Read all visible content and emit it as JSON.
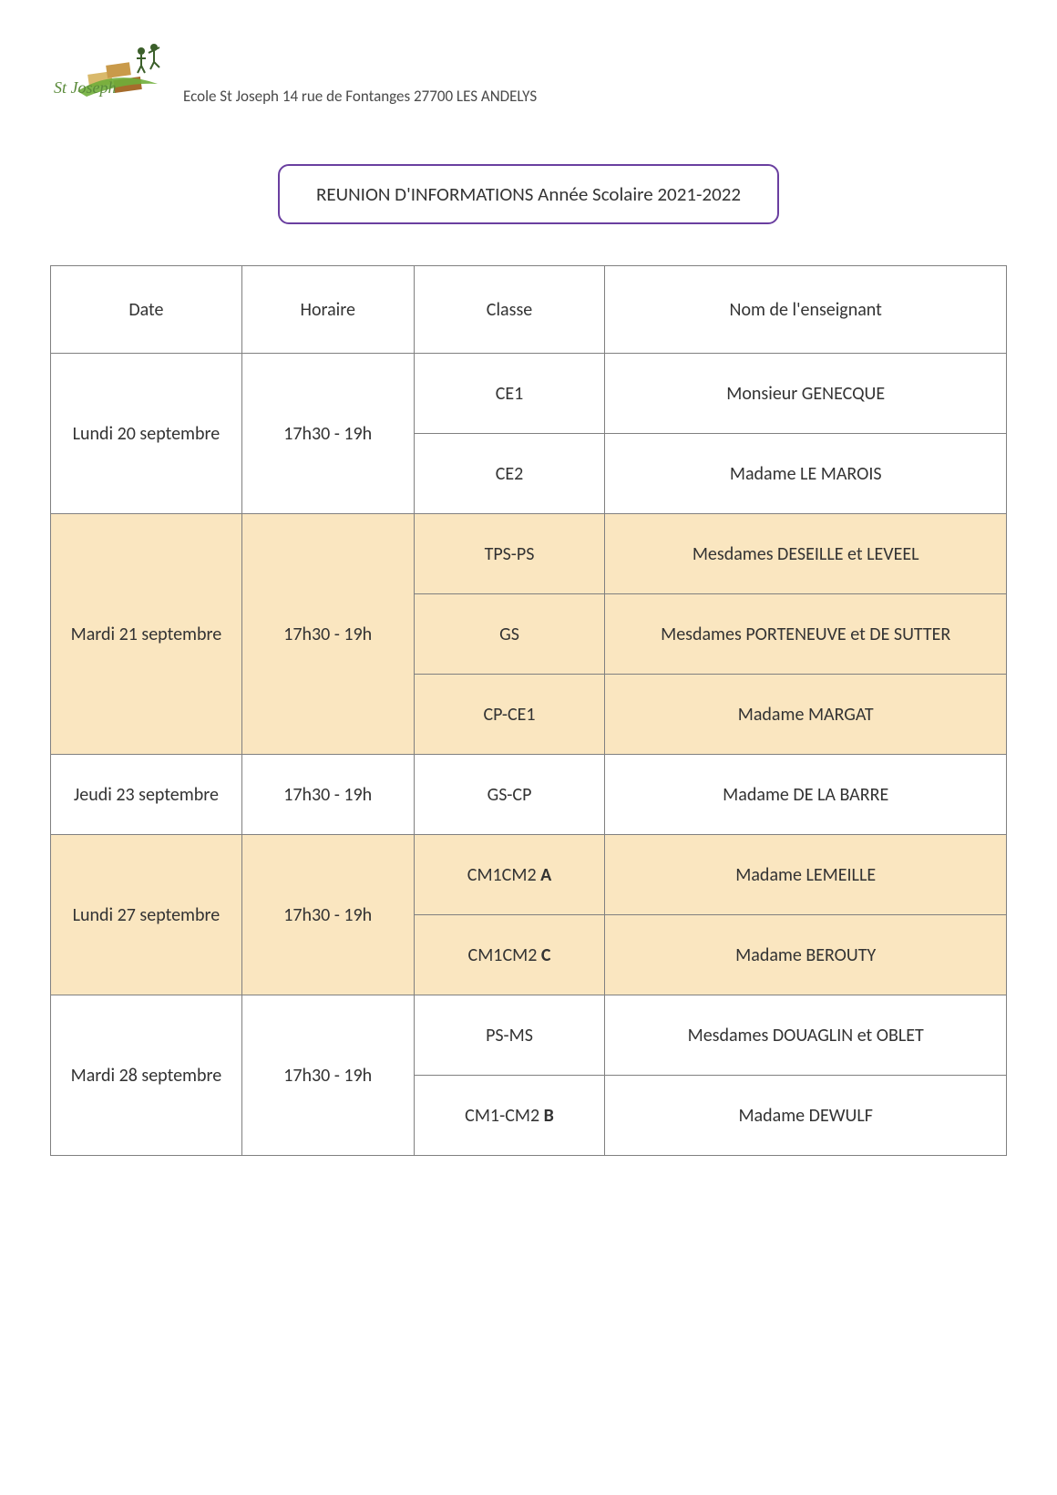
{
  "header": {
    "logo_text": "St Joseph",
    "logo_text_color": "#5a8a3a",
    "address": "Ecole St Joseph 14 rue de Fontanges 27700 LES ANDELYS"
  },
  "title": {
    "text": "REUNION D'INFORMATIONS Année Scolaire 2021-2022",
    "border_color": "#6a3fa0",
    "text_color": "#333333",
    "background_color": "#ffffff"
  },
  "table": {
    "border_color": "#808080",
    "columns": [
      "Date",
      "Horaire",
      "Classe",
      "Nom de l'enseignant"
    ],
    "highlight_bg": "#fae6c0",
    "plain_bg": "#ffffff",
    "text_color": "#333333",
    "header_fontsize": 20,
    "cell_fontsize": 20,
    "groups": [
      {
        "date": "Lundi 20 septembre",
        "time": "17h30 - 19h",
        "highlight": false,
        "rows": [
          {
            "class_plain": "CE1",
            "teacher": "Monsieur GENECQUE"
          },
          {
            "class_plain": "CE2",
            "teacher": "Madame LE MAROIS"
          }
        ]
      },
      {
        "date": "Mardi 21 septembre",
        "time": "17h30 - 19h",
        "highlight": true,
        "rows": [
          {
            "class_plain": "TPS-PS",
            "teacher": "Mesdames DESEILLE et LEVEEL"
          },
          {
            "class_plain": "GS",
            "teacher": "Mesdames PORTENEUVE et DE SUTTER"
          },
          {
            "class_plain": "CP-CE1",
            "teacher": "Madame MARGAT"
          }
        ]
      },
      {
        "date": "Jeudi 23 septembre",
        "time": "17h30 - 19h",
        "highlight": false,
        "rows": [
          {
            "class_plain": "GS-CP",
            "teacher": "Madame DE LA BARRE"
          }
        ]
      },
      {
        "date": "Lundi 27 septembre",
        "time": "17h30 - 19h",
        "highlight": true,
        "rows": [
          {
            "class_pre": "CM1CM2 ",
            "class_bold": "A",
            "teacher": "Madame LEMEILLE"
          },
          {
            "class_pre": "CM1CM2 ",
            "class_bold": "C",
            "teacher": "Madame BEROUTY"
          }
        ]
      },
      {
        "date": "Mardi 28 septembre",
        "time": "17h30 - 19h",
        "highlight": false,
        "rows": [
          {
            "class_plain": "PS-MS",
            "teacher": "Mesdames DOUAGLIN et OBLET"
          },
          {
            "class_pre": "CM1-CM2 ",
            "class_bold": "B",
            "teacher": "Madame DEWULF"
          }
        ]
      }
    ]
  }
}
